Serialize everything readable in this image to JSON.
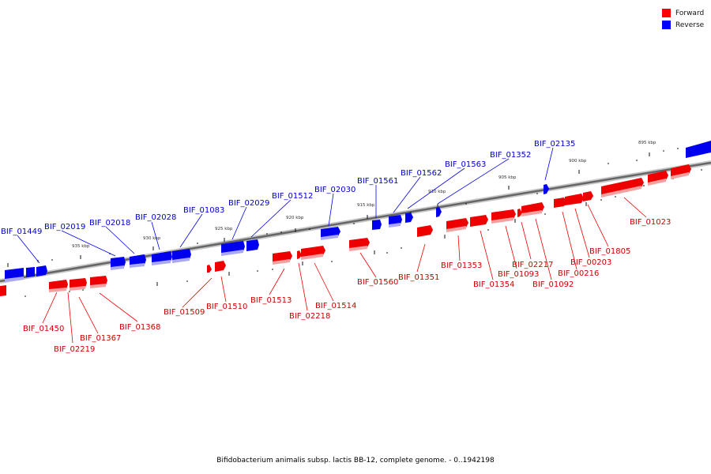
{
  "legend": {
    "forward_label": "Forward",
    "forward_color": "#ff0000",
    "reverse_label": "Reverse",
    "reverse_color": "#0000ff"
  },
  "caption": "Bifidobacterium animalis subsp. lactis BB-12, complete genome. - 0..1942198",
  "scale_ticks": [
    "895 kbp",
    "900 kbp",
    "905 kbp",
    "910 kbp",
    "915 kbp",
    "920 kbp",
    "925 kbp",
    "930 kbp",
    "935 kbp"
  ],
  "reverse_genes": [
    "BIF_01449",
    "BIF_02019",
    "BIF_02018",
    "BIF_02028",
    "BIF_01083",
    "BIF_02029",
    "BIF_01512",
    "BIF_02030",
    "BIF_01561",
    "BIF_01562",
    "BIF_01563",
    "BIF_01352",
    "BIF_02135"
  ],
  "forward_genes": [
    "BIF_01450",
    "BIF_02219",
    "BIF_01367",
    "BIF_01368",
    "BIF_01509",
    "BIF_01510",
    "BIF_01513",
    "BIF_02218",
    "BIF_01514",
    "BIF_01560",
    "BIF_01351",
    "BIF_01353",
    "BIF_01354",
    "BIF_01093",
    "BIF_02217",
    "BIF_01092",
    "BIF_00216",
    "BIF_00203",
    "BIF_01805",
    "BIF_01023"
  ]
}
